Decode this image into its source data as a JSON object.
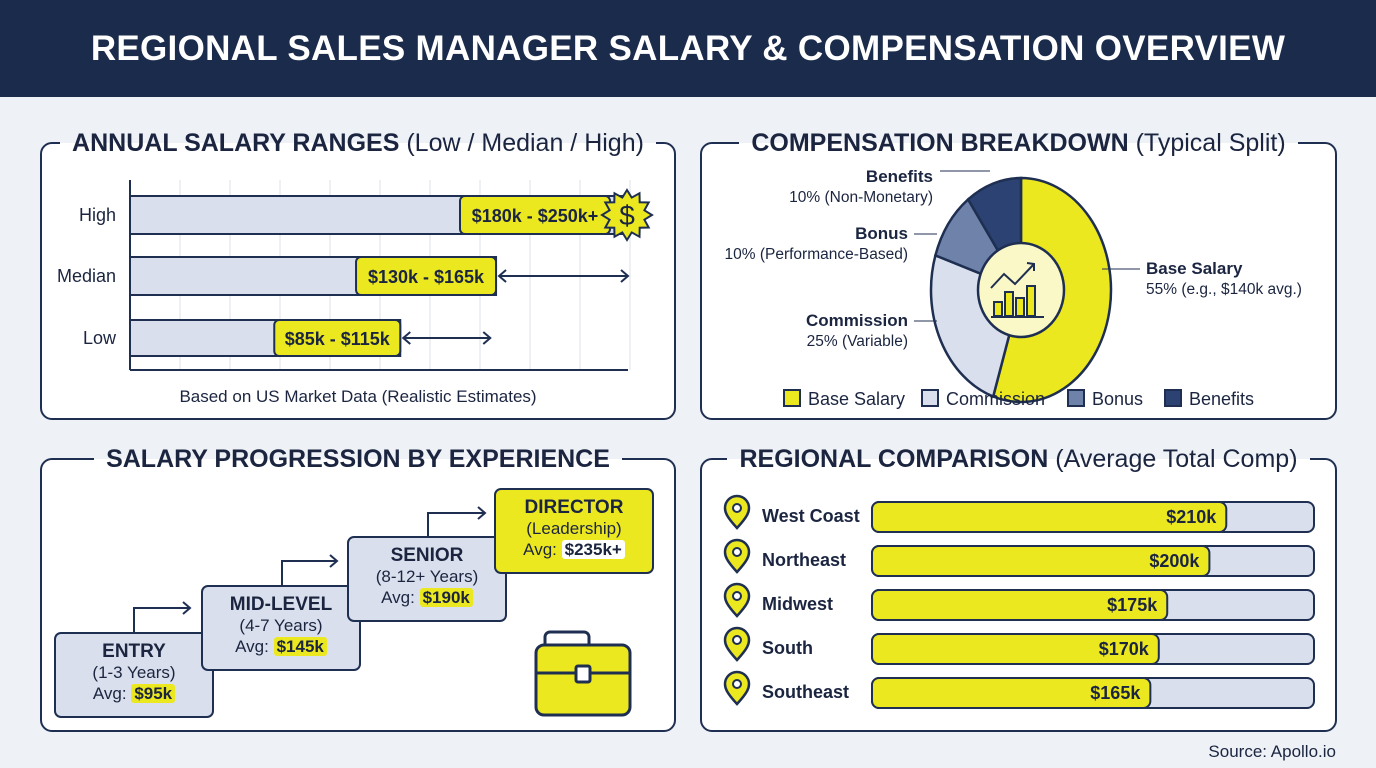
{
  "title": "REGIONAL SALES MANAGER SALARY & COMPENSATION OVERVIEW",
  "colors": {
    "navy": "#1b2b4b",
    "yellow": "#ece81f",
    "light": "#d9dfec",
    "mid": "#6f82aa",
    "dark": "#2b4272"
  },
  "ranges": {
    "title": "ANNUAL SALARY RANGES",
    "subtitle": "(Low / Median / High)",
    "note": "Based on US Market Data (Realistic Estimates)",
    "icon": "dollar-badge-icon"
  },
  "breakdown": {
    "title": "COMPENSATION BREAKDOWN",
    "subtitle": "(Typical Split)",
    "icon": "growth-chart-icon"
  },
  "progression": {
    "title": "SALARY PROGRESSION BY EXPERIENCE",
    "avg_label": "Avg:",
    "icon": "briefcase-icon",
    "levels": [
      {
        "name": "ENTRY",
        "years": "(1-3 Years)",
        "avg": "$95k"
      },
      {
        "name": "MID-LEVEL",
        "years": "(4-7 Years)",
        "avg": "$145k"
      },
      {
        "name": "SENIOR",
        "years": "(8-12+ Years)",
        "avg": "$190k"
      },
      {
        "name": "DIRECTOR",
        "years": "(Leadership)",
        "avg": "$235k+"
      }
    ]
  },
  "regional": {
    "title": "REGIONAL COMPARISON",
    "subtitle": "(Average Total Comp)",
    "icon": "map-pin-icon"
  },
  "source": "Source: Apollo.io",
  "chart_data": [
    {
      "type": "bar",
      "orientation": "horizontal",
      "categories": [
        "High",
        "Median",
        "Low"
      ],
      "ranges": [
        {
          "label": "$180k - $250k+",
          "low": 180,
          "high": 250
        },
        {
          "label": "$130k - $165k",
          "low": 130,
          "high": 165
        },
        {
          "label": "$85k - $115k",
          "low": 85,
          "high": 115
        }
      ],
      "unit": "$k",
      "grid": true
    },
    {
      "type": "pie",
      "style": "donut",
      "slices": [
        {
          "name": "Base Salary",
          "value": 55,
          "detail": "55% (e.g., $140k avg.)"
        },
        {
          "name": "Commission",
          "value": 25,
          "detail": "25% (Variable)"
        },
        {
          "name": "Bonus",
          "value": 10,
          "detail": "10% (Performance-Based)"
        },
        {
          "name": "Benefits",
          "value": 10,
          "detail": "10% (Non-Monetary)"
        }
      ],
      "legend": [
        "Base Salary",
        "Commission",
        "Bonus",
        "Benefits"
      ],
      "legend_position": "bottom"
    },
    {
      "type": "bar",
      "orientation": "horizontal",
      "categories": [
        "West Coast",
        "Northeast",
        "Midwest",
        "South",
        "Southeast"
      ],
      "values": [
        210,
        200,
        175,
        170,
        165
      ],
      "labels": [
        "$210k",
        "$200k",
        "$175k",
        "$170k",
        "$165k"
      ],
      "unit": "$k"
    }
  ]
}
